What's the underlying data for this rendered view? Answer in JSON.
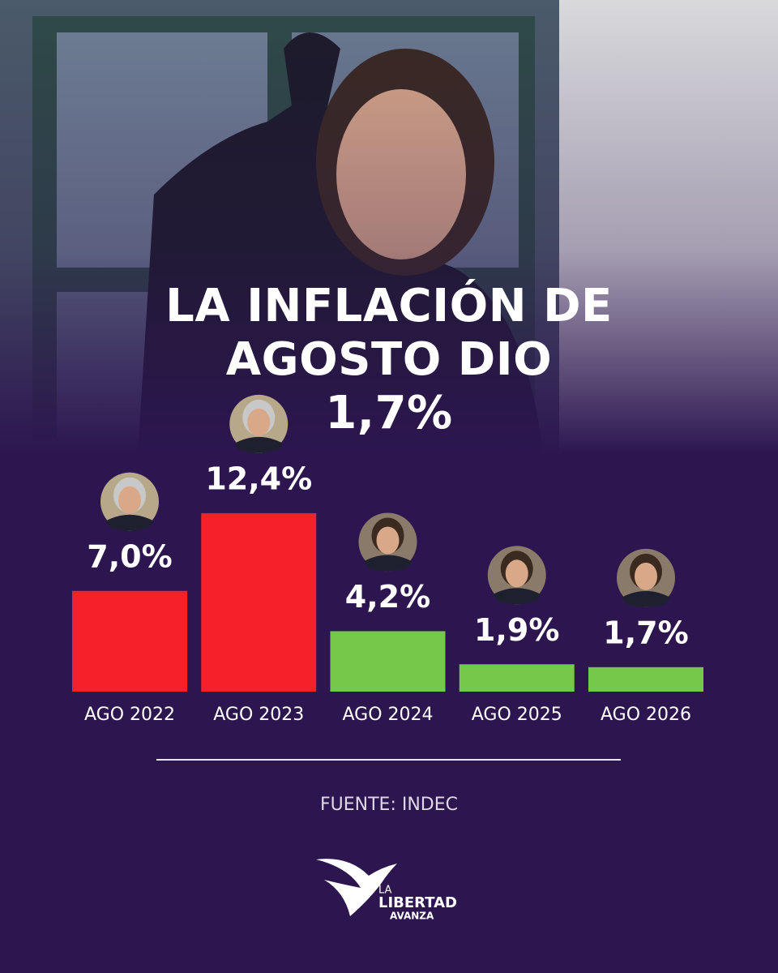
{
  "chart_data": {
    "type": "bar",
    "title": "LA INFLACIÓN DE AGOSTO DIO 1,7%",
    "categories": [
      "AGO 2022",
      "AGO 2023",
      "AGO 2024",
      "AGO 2025",
      "AGO 2026"
    ],
    "values": [
      7.0,
      12.4,
      4.2,
      1.9,
      1.7
    ],
    "value_labels": [
      "7,0%",
      "12,4%",
      "4,2%",
      "1,9%",
      "1,7%"
    ],
    "colors": [
      "#f5202a",
      "#f5202a",
      "#74c84a",
      "#74c84a",
      "#74c84a"
    ],
    "source": "FUENTE: INDEC"
  },
  "logo": {
    "line1": "LA",
    "line2": "LIBERTAD",
    "line3": "AVANZA"
  }
}
